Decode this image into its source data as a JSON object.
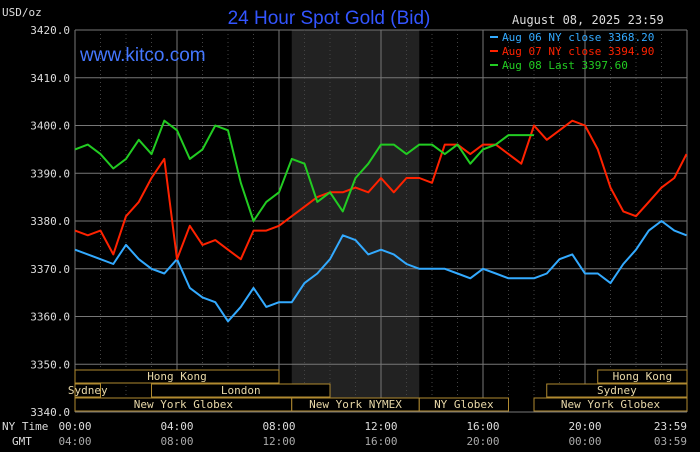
{
  "chart_data": {
    "type": "line",
    "title": "24 Hour Spot Gold (Bid)",
    "date_label": "August 08, 2025 23:59",
    "unit_label": "USD/oz",
    "watermark": "www.kitco.com",
    "ylim": [
      3340,
      3420
    ],
    "y_ticks": [
      "3420.0",
      "3410.0",
      "3400.0",
      "3390.0",
      "3380.0",
      "3370.0",
      "3360.0",
      "3350.0",
      "3340.0"
    ],
    "x_ticks_ny": [
      "00:00",
      "04:00",
      "08:00",
      "12:00",
      "16:00",
      "20:00",
      "23:59"
    ],
    "x_ticks_gmt": [
      "04:00",
      "08:00",
      "12:00",
      "16:00",
      "20:00",
      "00:00",
      "03:59"
    ],
    "ny_time_label": "NY Time",
    "gmt_label": "GMT",
    "legend": [
      "Aug 06 NY close 3368.20",
      "Aug 07 NY close 3394.90",
      "Aug 08 Last 3397.60"
    ],
    "series": [
      {
        "name": "Aug 06 NY close 3368.20",
        "color": "#33aaff",
        "x": [
          0,
          0.5,
          1,
          1.5,
          2,
          2.5,
          3,
          3.5,
          4,
          4.5,
          5,
          5.5,
          6,
          6.5,
          7,
          7.5,
          8,
          8.5,
          9,
          9.5,
          10,
          10.5,
          11,
          11.5,
          12,
          12.5,
          13,
          13.5,
          14,
          14.5,
          15,
          15.5,
          16,
          16.5,
          17,
          17.5,
          18,
          18.5,
          19,
          19.5,
          20,
          20.5,
          21,
          21.5,
          22,
          22.5,
          23,
          23.5,
          23.98
        ],
        "y": [
          3374,
          3373,
          3372,
          3371,
          3375,
          3372,
          3370,
          3369,
          3372,
          3366,
          3364,
          3363,
          3359,
          3362,
          3366,
          3362,
          3363,
          3363,
          3367,
          3369,
          3372,
          3377,
          3376,
          3373,
          3374,
          3373,
          3371,
          3370,
          3370,
          3370,
          3369,
          3368,
          3370,
          3369,
          3368,
          3368,
          3368,
          3369,
          3372,
          3373,
          3369,
          3369,
          3367,
          3371,
          3374,
          3378,
          3380,
          3378,
          3377
        ]
      },
      {
        "name": "Aug 07 NY close 3394.90",
        "color": "#ff2200",
        "x": [
          0,
          0.5,
          1,
          1.5,
          2,
          2.5,
          3,
          3.5,
          4,
          4.5,
          5,
          5.5,
          6,
          6.5,
          7,
          7.5,
          8,
          8.5,
          9,
          9.5,
          10,
          10.5,
          11,
          11.5,
          12,
          12.5,
          13,
          13.5,
          14,
          14.5,
          15,
          15.5,
          16,
          16.5,
          17,
          17.5,
          18,
          18.5,
          19,
          19.5,
          20,
          20.5,
          21,
          21.5,
          22,
          22.5,
          23,
          23.5,
          23.98
        ],
        "y": [
          3378,
          3377,
          3378,
          3373,
          3381,
          3384,
          3389,
          3393,
          3372,
          3379,
          3375,
          3376,
          3374,
          3372,
          3378,
          3378,
          3379,
          3381,
          3383,
          3385,
          3386,
          3386,
          3387,
          3386,
          3389,
          3386,
          3389,
          3389,
          3388,
          3396,
          3396,
          3394,
          3396,
          3396,
          3394,
          3392,
          3400,
          3397,
          3399,
          3401,
          3400,
          3395,
          3387,
          3382,
          3381,
          3384,
          3387,
          3389,
          3394
        ]
      },
      {
        "name": "Aug 08 Last 3397.60",
        "color": "#22cc22",
        "x": [
          0,
          0.5,
          1,
          1.5,
          2,
          2.5,
          3,
          3.5,
          4,
          4.5,
          5,
          5.5,
          6,
          6.5,
          7,
          7.5,
          8,
          8.5,
          9,
          9.5,
          10,
          10.5,
          11,
          11.5,
          12,
          12.5,
          13,
          13.5,
          14,
          14.5,
          15,
          15.5,
          16,
          16.5,
          17,
          17.5,
          18
        ],
        "y": [
          3395,
          3396,
          3394,
          3391,
          3393,
          3397,
          3394,
          3401,
          3399,
          3393,
          3395,
          3400,
          3399,
          3388,
          3380,
          3384,
          3386,
          3393,
          3392,
          3384,
          3386,
          3382,
          3389,
          3392,
          3396,
          3396,
          3394,
          3396,
          3396,
          3394,
          3396,
          3392,
          3395,
          3396,
          3398,
          3398,
          3398
        ]
      }
    ],
    "sessions": [
      {
        "label": "Hong Kong",
        "start": 0,
        "end": 8,
        "row": 0
      },
      {
        "label": "Sydney",
        "start": 0,
        "end": 1,
        "row": 1
      },
      {
        "label": "London",
        "start": 3,
        "end": 10,
        "row": 1
      },
      {
        "label": "New York Globex",
        "start": 0,
        "end": 8.5,
        "row": 2
      },
      {
        "label": "New York NYMEX",
        "start": 8.5,
        "end": 13.5,
        "row": 2
      },
      {
        "label": "NY Globex",
        "start": 13.5,
        "end": 17,
        "row": 2
      },
      {
        "label": "Hong Kong",
        "start": 20.5,
        "end": 24,
        "row": 0
      },
      {
        "label": "Sydney",
        "start": 18.5,
        "end": 24,
        "row": 1
      },
      {
        "label": "New York Globex",
        "start": 18,
        "end": 24,
        "row": 2
      }
    ],
    "highlight_band": [
      8.5,
      13.5
    ],
    "grid": true,
    "colors": {
      "background": "#000000",
      "grid": "#777777",
      "title": "#3355ff",
      "watermark": "#4477ff",
      "axis_text": "#dddddd",
      "session_border": "#b08a30",
      "session_text": "#e8d8a8"
    }
  }
}
